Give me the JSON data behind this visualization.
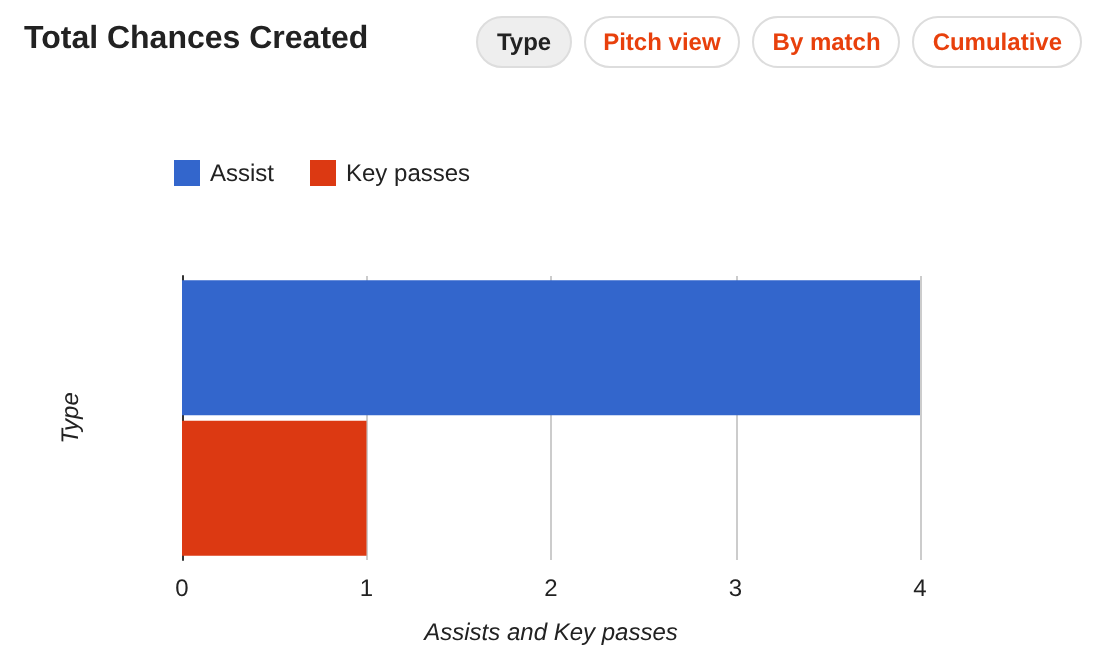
{
  "chart_data": {
    "type": "bar",
    "title": "Total Chances Created",
    "annotations": [
      "Type",
      "Pitch view",
      "By match",
      "Cumulative"
    ],
    "orientation": "horizontal",
    "categories": [
      null
    ],
    "series": [
      {
        "name": "Assist",
        "color": "#3366cc",
        "values": [
          4
        ]
      },
      {
        "name": "Key passes",
        "color": "#dc3912",
        "values": [
          1
        ]
      }
    ],
    "xlim": [
      0,
      4
    ],
    "xticks": [
      0,
      1,
      2,
      3,
      4
    ],
    "xlabel": "Assists and Key passes",
    "ylabel": "Type",
    "grid": "x",
    "legend": "top left"
  }
}
